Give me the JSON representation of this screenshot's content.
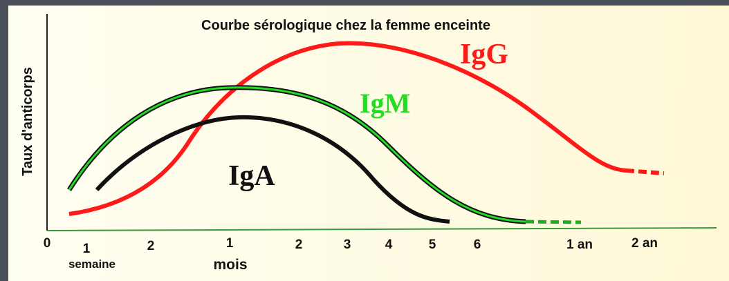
{
  "title": "Courbe sérologique chez la femme enceinte",
  "y_axis_label": "Taux d'anticorps",
  "x_ticks": [
    "0",
    "1",
    "2",
    "1",
    "2",
    "3",
    "4",
    "5",
    "6",
    "1 an",
    "2 an"
  ],
  "x_units": [
    "semaine",
    "mois"
  ],
  "curves": [
    {
      "label": "IgG"
    },
    {
      "label": "IgM"
    },
    {
      "label": "IgA"
    }
  ]
}
